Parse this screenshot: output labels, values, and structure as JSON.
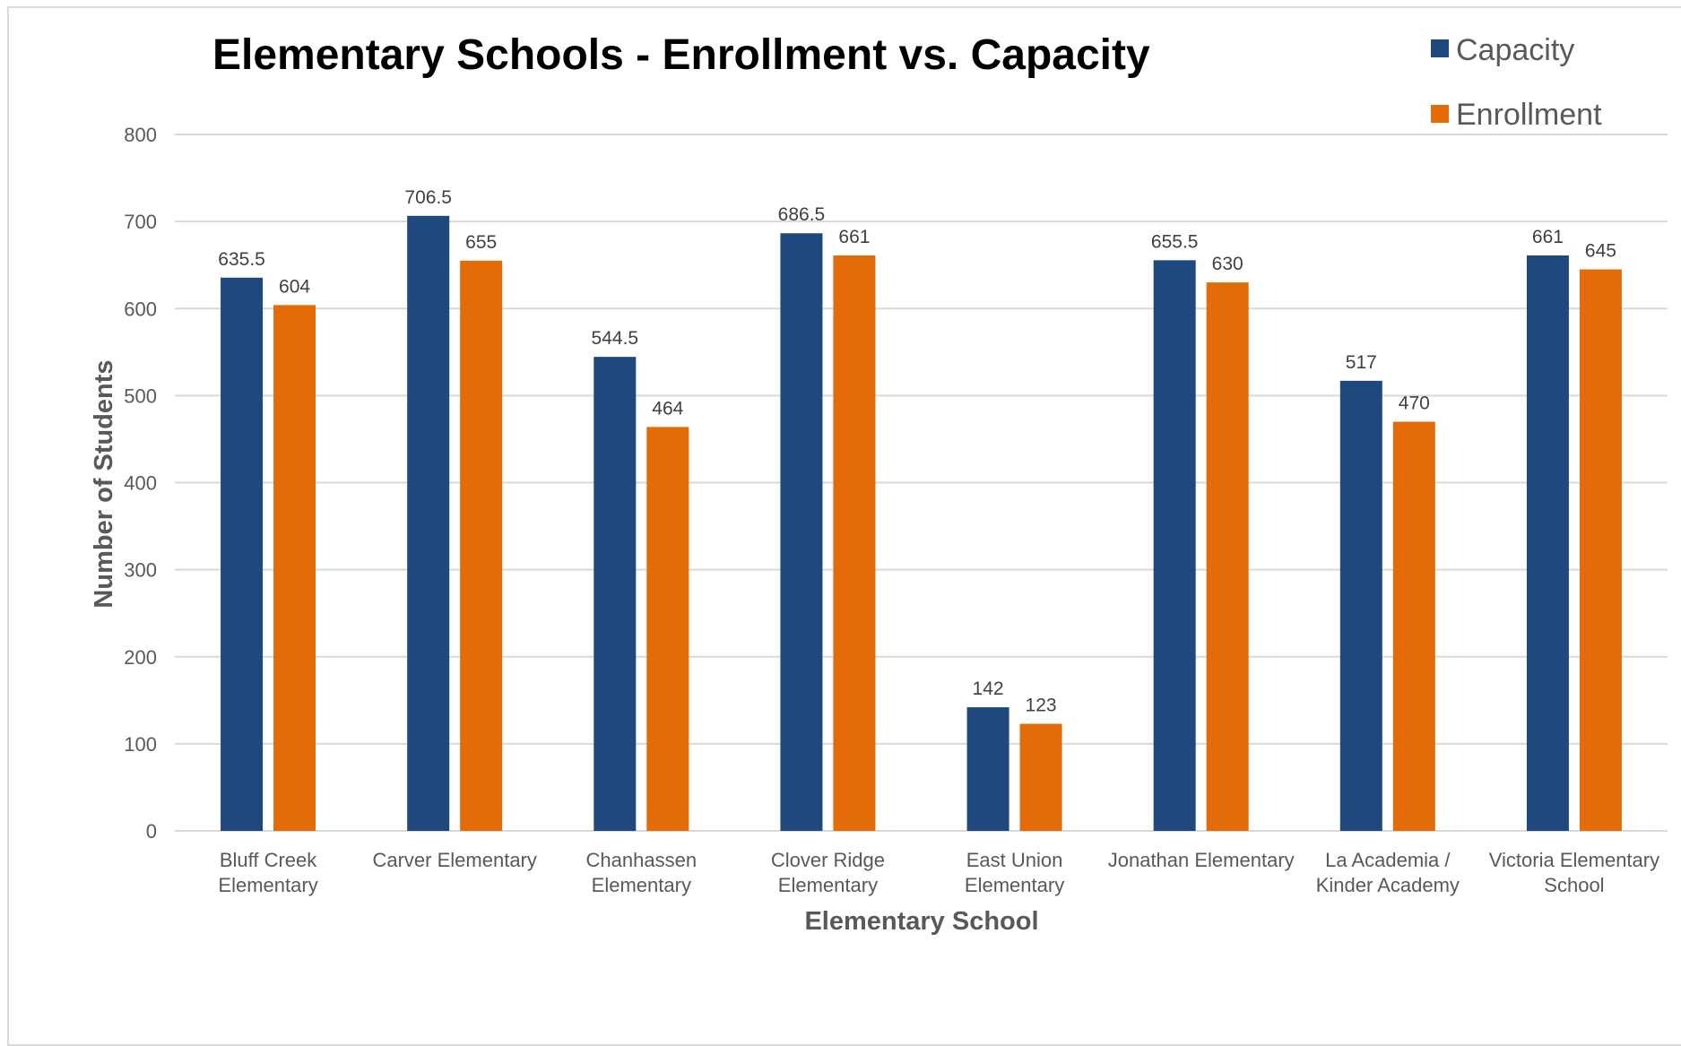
{
  "chart_data": {
    "type": "bar",
    "title": "Elementary Schools - Enrollment vs. Capacity",
    "xlabel": "Elementary School",
    "ylabel": "Number of Students",
    "ylim": [
      0,
      800
    ],
    "yticks": [
      "0",
      "100",
      "200",
      "300",
      "400",
      "500",
      "600",
      "700",
      "800"
    ],
    "grid": true,
    "legend_position": "top-right",
    "categories": [
      [
        "Bluff Creek",
        "Elementary"
      ],
      [
        "Carver Elementary"
      ],
      [
        "Chanhassen",
        "Elementary"
      ],
      [
        "Clover Ridge",
        "Elementary"
      ],
      [
        "East Union",
        "Elementary"
      ],
      [
        "Jonathan Elementary"
      ],
      [
        "La Academia /",
        "Kinder Academy"
      ],
      [
        "Victoria Elementary",
        "School"
      ]
    ],
    "series": [
      {
        "name": "Capacity",
        "color": "#1f497d",
        "values": [
          635.5,
          706.5,
          544.5,
          686.5,
          142,
          655.5,
          517,
          661
        ],
        "labels": [
          "635.5",
          "706.5",
          "544.5",
          "686.5",
          "142",
          "655.5",
          "517",
          "661"
        ]
      },
      {
        "name": "Enrollment",
        "color": "#e36c09",
        "values": [
          604,
          655,
          464,
          661,
          123,
          630,
          470,
          645
        ],
        "labels": [
          "604",
          "655",
          "464",
          "661",
          "123",
          "630",
          "470",
          "645"
        ]
      }
    ]
  }
}
